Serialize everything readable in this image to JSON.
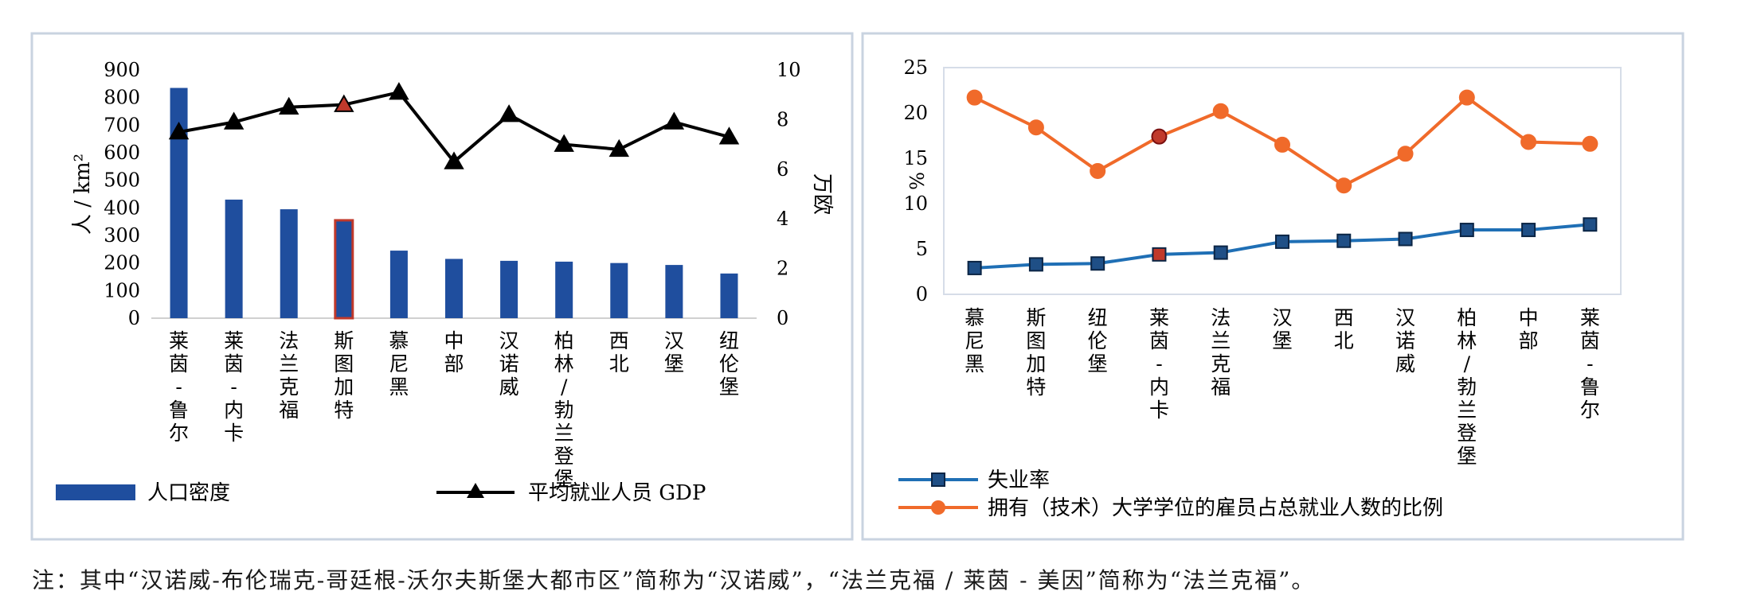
{
  "colors": {
    "bar": "#1f4e9e",
    "gdp_line": "#000000",
    "unemp_line": "#1f6fb5",
    "unemp_marker": "#1f4f86",
    "degree_line": "#f06a2a",
    "highlight": "#c0392b",
    "panel_border": "#c9d3e0"
  },
  "chart_data": [
    {
      "type": "bar",
      "categories": [
        "莱\n茵\n-\n鲁\n尔",
        "莱\n茵\n-\n内\n卡",
        "法\n兰\n克\n福",
        "斯\n图\n加\n特",
        "慕\n尼\n黑",
        "中\n部",
        "汉\n诺\n威",
        "柏\n林\n/\n勃\n兰\n登\n堡",
        "西\n北",
        "汉\n堡",
        "纽\n伦\n堡"
      ],
      "highlight_index": 3,
      "ylabel": "人 / km²",
      "y2label": "万欧",
      "ylim": [
        0,
        900
      ],
      "yticks": [
        "0",
        "100",
        "200",
        "300",
        "400",
        "500",
        "600",
        "700",
        "800",
        "900"
      ],
      "y2lim": [
        0,
        10
      ],
      "y2ticks": [
        "0",
        "2",
        "4",
        "6",
        "8",
        "10"
      ],
      "series": [
        {
          "name": "人口密度",
          "type": "bar",
          "axis": "left",
          "values": [
            835,
            430,
            395,
            355,
            245,
            215,
            208,
            205,
            200,
            193,
            162
          ]
        },
        {
          "name": "平均就业人员 GDP",
          "type": "line",
          "marker": "triangle",
          "axis": "right",
          "values": [
            7.5,
            7.9,
            8.5,
            8.6,
            9.1,
            6.3,
            8.2,
            7.0,
            6.8,
            7.9,
            7.3
          ]
        }
      ]
    },
    {
      "type": "line",
      "categories": [
        "慕\n尼\n黑",
        "斯\n图\n加\n特",
        "纽\n伦\n堡",
        "莱\n茵\n-\n内\n卡",
        "法\n兰\n克\n福",
        "汉\n堡",
        "西\n北",
        "汉\n诺\n威",
        "柏\n林\n/\n勃\n兰\n登\n堡",
        "中\n部",
        "莱\n茵\n-\n鲁\n尔"
      ],
      "highlight_index": 3,
      "ylabel": "%",
      "ylim": [
        0,
        25
      ],
      "yticks": [
        "0",
        "5",
        "10",
        "15",
        "20",
        "25"
      ],
      "series": [
        {
          "name": "失业率",
          "marker": "square",
          "values": [
            2.9,
            3.3,
            3.4,
            4.4,
            4.6,
            5.8,
            5.9,
            6.1,
            7.1,
            7.1,
            7.7
          ]
        },
        {
          "name": "拥有（技术）大学学位的雇员占总就业人数的比例",
          "marker": "circle",
          "values": [
            21.7,
            18.4,
            13.6,
            17.4,
            20.2,
            16.5,
            12.0,
            15.5,
            21.7,
            16.8,
            16.6
          ]
        }
      ]
    }
  ],
  "note": "注：其中“汉诺威-布伦瑞克-哥廷根-沃尔夫斯堡大都市区”简称为“汉诺威”，“法兰克福 / 莱茵 - 美因”简称为“法兰克福”。"
}
